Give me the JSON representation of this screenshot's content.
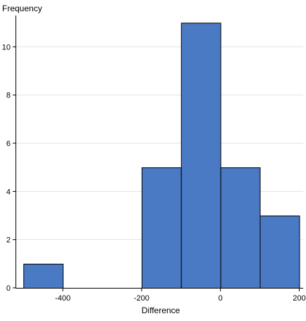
{
  "chart_data": {
    "type": "bar",
    "title": "",
    "xlabel": "Difference",
    "ylabel": "Frequency",
    "bin_edges": [
      -500,
      -400,
      -300,
      -200,
      -100,
      0,
      100,
      200
    ],
    "values": [
      1,
      0,
      0,
      5,
      11,
      5,
      3
    ],
    "xlim": [
      -520,
      210
    ],
    "ylim": [
      0,
      11.3
    ],
    "x_ticks": [
      -400,
      -200,
      0,
      200
    ],
    "y_ticks": [
      0,
      2,
      4,
      6,
      8,
      10
    ],
    "grid": "horizontal",
    "legend": "none",
    "bar_color": "#4A7AC4",
    "bar_edge_color": "#000000",
    "grid_color": "#E2E2E2"
  }
}
